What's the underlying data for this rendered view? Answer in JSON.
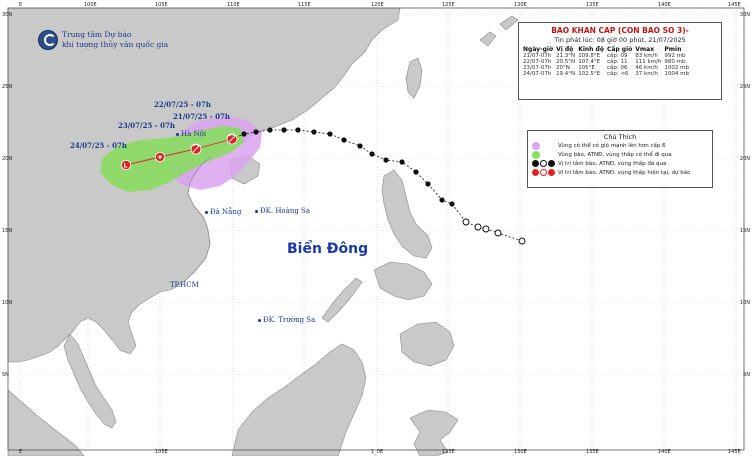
{
  "header": {
    "org_line1": "Trung tâm Dự báo",
    "org_line2": "khí tượng thủy văn quốc gia"
  },
  "axes": {
    "lon_ticks": [
      "E",
      "100E",
      "105E",
      "110E",
      "115E",
      "120E",
      "125E",
      "130E",
      "135E",
      "140E",
      "145E"
    ],
    "lat_ticks_left": [
      "30N",
      "25N",
      "20N",
      "15N",
      "10N",
      "5N"
    ],
    "lat_ticks_right": [
      "30N",
      "25N",
      "20N",
      "15N",
      "10N",
      "5N"
    ],
    "bottom_ticks": [
      "E",
      "105E",
      "1_0E",
      "125E",
      "130E",
      "135E",
      "140E",
      "145E"
    ]
  },
  "bulletin": {
    "title": "BAO KHAN CAP (CON BAO SO 3)-",
    "subtitle": "Tin phát lúc: 08 giờ 00 phút, 21/07/2025",
    "columns": [
      "Ngày-giờ",
      "Vị độ",
      "Kinh độ",
      "Cấp gió",
      "Vmax",
      "Pmin"
    ],
    "rows": [
      [
        "21/07-07h",
        "21.3°N",
        "109.8°E",
        "cấp: 09",
        "83 km/h",
        "992 mb"
      ],
      [
        "22/07-07h",
        "20.5°N",
        "107.4°E",
        "cấp: 11",
        "111 km/h",
        "980 mb"
      ],
      [
        "23/07-07h",
        "20°N",
        "105°E",
        "cấp: 06",
        "46 km/h",
        "1002 mb"
      ],
      [
        "24/07-07h",
        "19.4°N",
        "102.5°E",
        "cấp: <6",
        "37 km/h",
        "1004 mb"
      ]
    ]
  },
  "legend": {
    "title": "Chú Thích",
    "items": [
      {
        "text": "Vùng có thể có gió mạnh lên hơn cấp 6",
        "color": "#d9a3ef"
      },
      {
        "text": "Vùng bão, ATNĐ, vùng thấp có thể đi qua",
        "color": "#89dc62"
      },
      {
        "text": "Vị trí tâm bão, ATNĐ, vùng thấp đã qua",
        "color": "#111111"
      },
      {
        "text": "Vị trí tâm bão, ATNĐ, vùng thấp hiện tại, dự báo",
        "color": "#e22222"
      }
    ]
  },
  "map": {
    "sea_name": "Biển Đông",
    "places": [
      {
        "name": "Hà Nội"
      },
      {
        "name": "Đà Nẵng"
      },
      {
        "name": "ĐK. Hoàng Sa"
      },
      {
        "name": "TP.HCM"
      },
      {
        "name": "ĐK. Trường Sa"
      }
    ],
    "forecast_labels": [
      "21/07/25 - 07h",
      "22/07/25 - 07h",
      "23/07/25 - 07h",
      "24/07/25 - 07h"
    ],
    "colors": {
      "sea": "#ffffff",
      "land": "#c9c9c9",
      "grid": "#c8c8c8",
      "cone": "#89dc62",
      "wind_zone": "#d9a3ef",
      "past_track": "#111111",
      "forecast_track": "#e22222"
    }
  }
}
